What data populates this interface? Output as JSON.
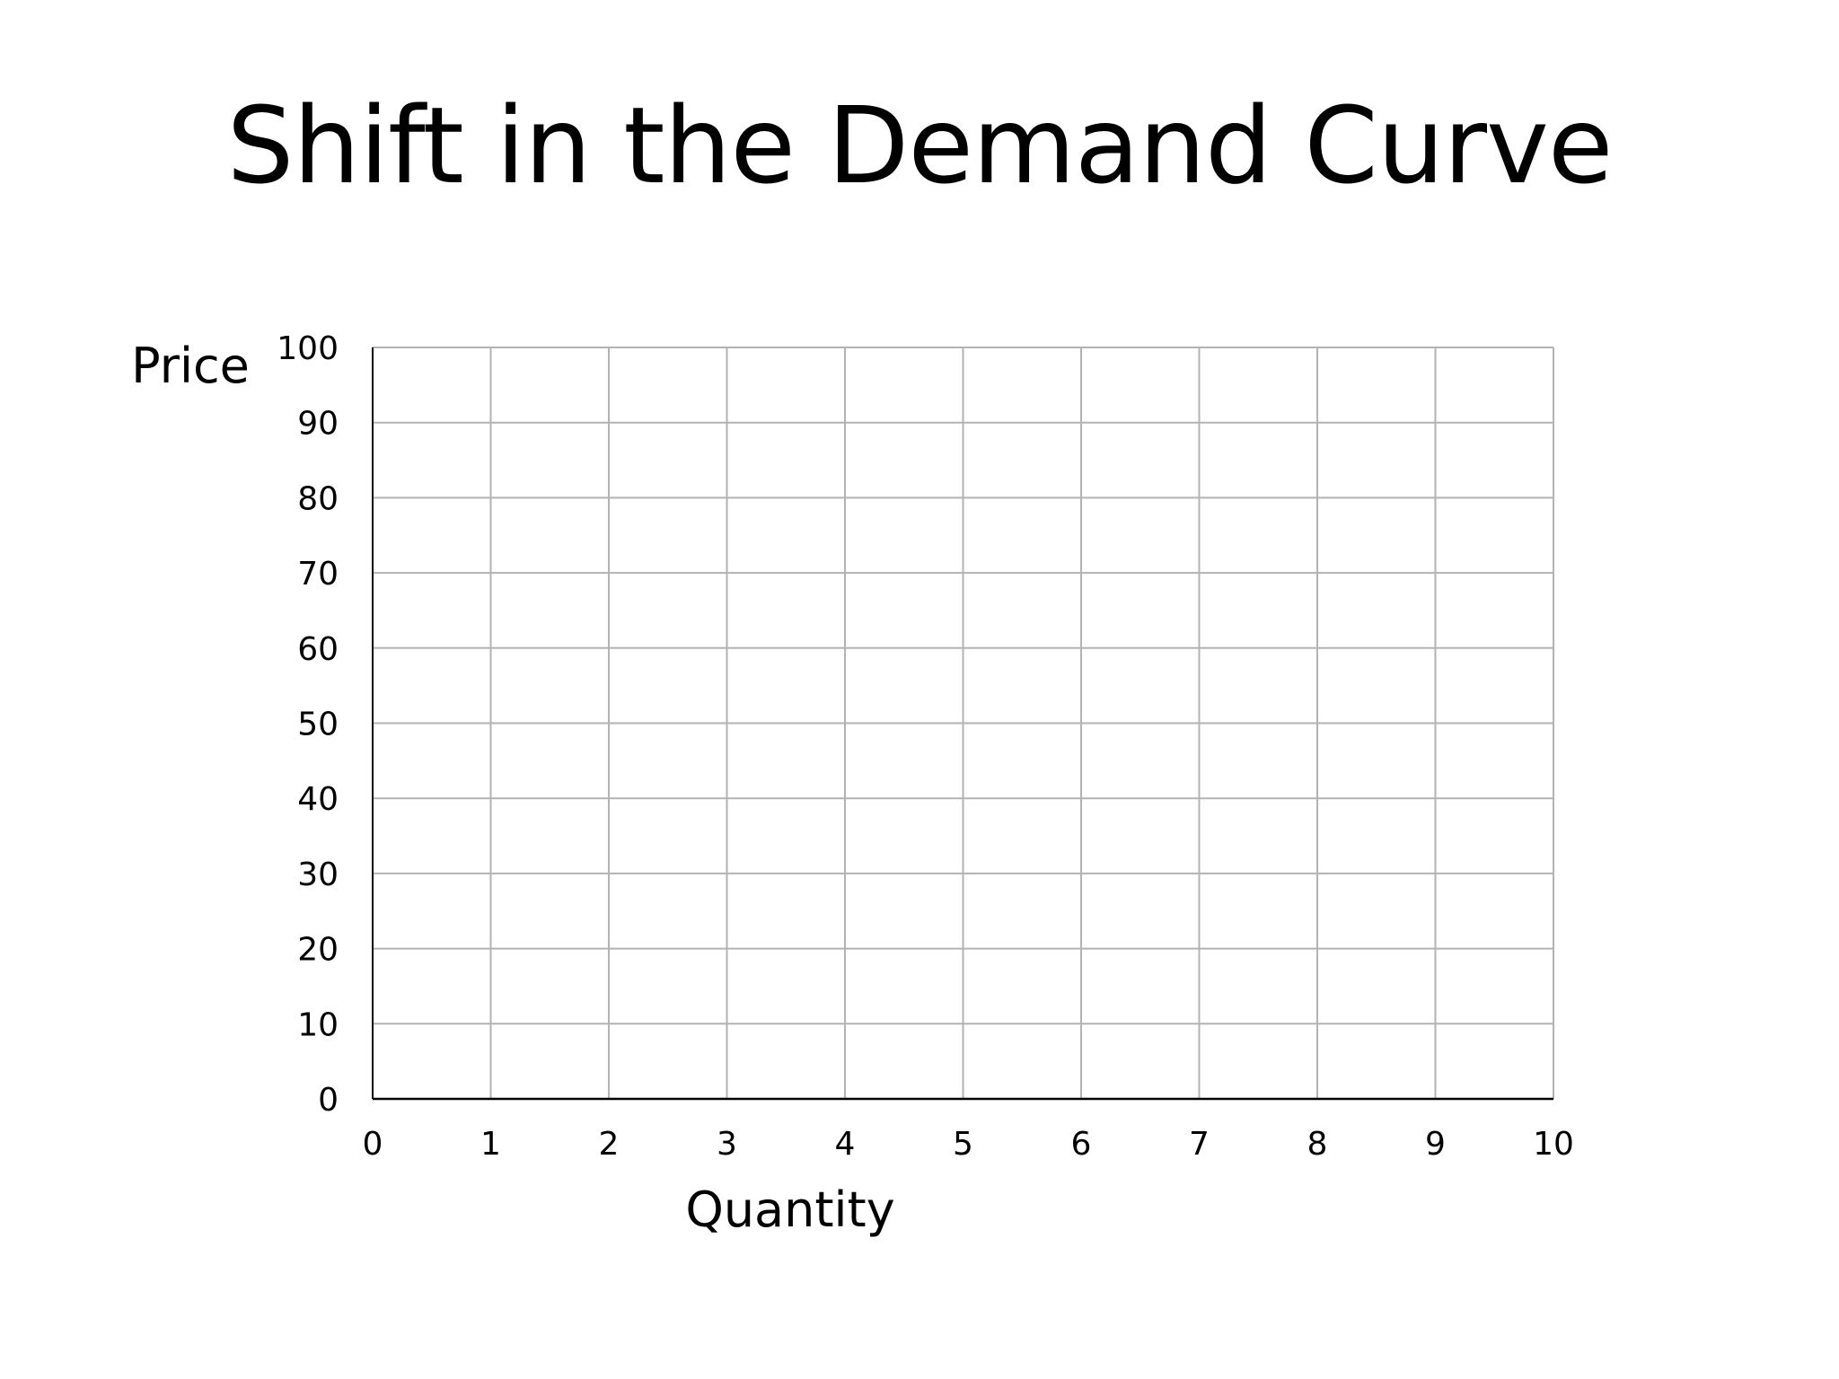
{
  "slide": {
    "title": "Shift in the Demand Curve"
  },
  "chart_data": {
    "type": "line",
    "title": "Shift in the Demand Curve",
    "xlabel": "Quantity",
    "ylabel": "Price",
    "xlim": [
      0,
      10
    ],
    "ylim": [
      0,
      100
    ],
    "x_ticks": [
      0,
      1,
      2,
      3,
      4,
      5,
      6,
      7,
      8,
      9,
      10
    ],
    "y_ticks": [
      0,
      10,
      20,
      30,
      40,
      50,
      60,
      70,
      80,
      90,
      100
    ],
    "grid": true,
    "series": [],
    "colors": {
      "grid": "#b3b3b3",
      "axis": "#000000",
      "text": "#000000"
    }
  }
}
